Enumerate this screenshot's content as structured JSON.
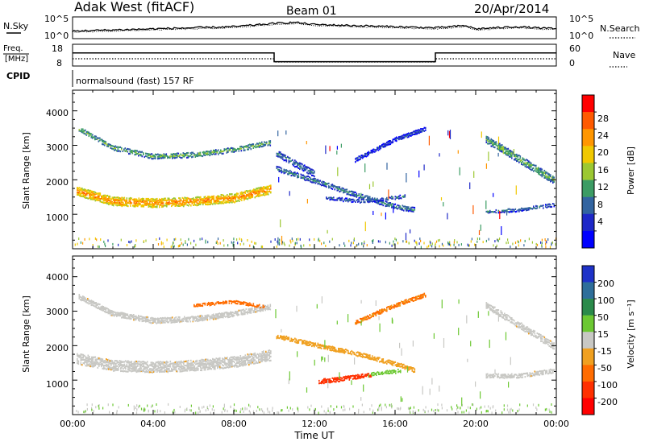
{
  "header": {
    "station": "Adak West (fitACF)",
    "beam": "Beam 01",
    "date": "20/Apr/2014"
  },
  "nsky_panel": {
    "left_label": "N.Sky",
    "left_ticks": [
      "10^5",
      "10^0"
    ],
    "right_ticks": [
      "10^5",
      "10^0"
    ],
    "right_label": "N.Search"
  },
  "freq_panel": {
    "left_label_1": "Freq.",
    "left_label_2": "[MHz]",
    "left_ticks": [
      "18",
      "8"
    ],
    "right_ticks": [
      "60",
      "0"
    ],
    "right_label": "Nave",
    "cpid_label": "CPID",
    "cpid_text": "normalsound (fast) 157 RF"
  },
  "range_panels": {
    "ylabel": "Slant Range [km]",
    "yticks": [
      "4000",
      "3000",
      "2000",
      "1000"
    ]
  },
  "colorbars": {
    "power": {
      "label": "Power [dB]",
      "ticks": [
        "28",
        "24",
        "20",
        "16",
        "12",
        "8",
        "4"
      ],
      "colors": [
        "#ff0000",
        "#ff5a00",
        "#ff9600",
        "#f0c800",
        "#9cc832",
        "#3c9c64",
        "#3264a0",
        "#1e28c8",
        "#0000ff"
      ]
    },
    "velocity": {
      "label": "Velocity [m s⁻¹]",
      "ticks": [
        "200",
        "100",
        "50",
        "15",
        "-15",
        "-50",
        "-100",
        "-200"
      ],
      "colors": [
        "#1e32c8",
        "#2e6e9a",
        "#2a8a4a",
        "#6cc832",
        "#c8c8c4",
        "#f0a020",
        "#ff6c00",
        "#ff3000",
        "#ff0000"
      ]
    }
  },
  "xaxis": {
    "ticks": [
      "00:00",
      "04:00",
      "08:00",
      "12:00",
      "16:00",
      "20:00",
      "00:00"
    ],
    "label": "Time UT"
  },
  "chart_data": [
    {
      "type": "line",
      "series": [
        {
          "x": [
            0,
            2,
            4,
            6,
            8,
            10,
            11,
            12,
            14,
            16,
            18,
            19.5,
            20,
            22,
            24
          ],
          "y": [
            0.35,
            0.4,
            0.45,
            0.5,
            0.55,
            0.7,
            0.75,
            0.65,
            0.6,
            0.55,
            0.5,
            0.6,
            0.45,
            0.55,
            0.45
          ]
        }
      ],
      "xlim": [
        0,
        24
      ],
      "xlabel": "",
      "ylabel": "N.Sky"
    },
    {
      "type": "line",
      "series": [
        {
          "x": [
            0,
            10,
            10,
            18,
            18,
            24
          ],
          "y": [
            14,
            14,
            10,
            10,
            14,
            14
          ]
        }
      ],
      "xlim": [
        0,
        24
      ],
      "ylim": [
        8,
        18
      ],
      "xlabel": "",
      "ylabel": "Freq. [MHz]"
    },
    {
      "type": "heatmap",
      "x_range": [
        0,
        24
      ],
      "y_range": [
        0,
        4600
      ],
      "ylabel": "Slant Range [km]",
      "colorbar": "Power [dB]",
      "clim": [
        0,
        30
      ],
      "bands": [
        {
          "t": [
            0.2,
            2,
            4,
            6,
            8,
            9.8
          ],
          "range": [
            1700,
            1400,
            1350,
            1400,
            1500,
            1750
          ],
          "width": 260,
          "value": 24
        },
        {
          "t": [
            0.3,
            2,
            4,
            6,
            8,
            9.8
          ],
          "range": [
            3500,
            2950,
            2700,
            2750,
            2900,
            3100
          ],
          "width": 150,
          "value": 14
        },
        {
          "t": [
            10.1,
            12,
            14,
            16,
            17
          ],
          "range": [
            2350,
            2000,
            1600,
            1250,
            1150
          ],
          "width": 150,
          "value": 11
        },
        {
          "t": [
            12.5,
            14.5,
            16.5
          ],
          "range": [
            1500,
            1400,
            1550
          ],
          "width": 110,
          "value": 9
        },
        {
          "t": [
            14,
            16,
            17.5
          ],
          "range": [
            2600,
            3200,
            3500
          ],
          "width": 120,
          "value": 7
        },
        {
          "t": [
            20.5,
            22,
            23.9
          ],
          "range": [
            1100,
            1150,
            1300
          ],
          "width": 100,
          "value": 10
        },
        {
          "t": [
            20.5,
            22.5,
            23.9
          ],
          "range": [
            3200,
            2500,
            2000
          ],
          "width": 230,
          "value": 14
        },
        {
          "t": [
            10.1,
            11,
            12
          ],
          "range": [
            2800,
            2500,
            2200
          ],
          "width": 200,
          "value": 10
        }
      ]
    },
    {
      "type": "heatmap",
      "x_range": [
        0,
        24
      ],
      "y_range": [
        0,
        4600
      ],
      "ylabel": "Slant Range [km]",
      "colorbar": "Velocity [m s⁻¹]",
      "clim": [
        -250,
        250
      ],
      "bands": [
        {
          "t": [
            0.2,
            2,
            4,
            6,
            8,
            9.8
          ],
          "range": [
            1650,
            1450,
            1400,
            1450,
            1550,
            1750
          ],
          "width": 320,
          "value": 0
        },
        {
          "t": [
            0.3,
            2,
            4,
            6,
            8,
            9.8
          ],
          "range": [
            3450,
            2950,
            2750,
            2800,
            2950,
            3150
          ],
          "width": 160,
          "value": 0
        },
        {
          "t": [
            10.1,
            12,
            14,
            16,
            17
          ],
          "range": [
            2300,
            2050,
            1800,
            1500,
            1300
          ],
          "width": 130,
          "value": -30
        },
        {
          "t": [
            12.2,
            13.5,
            14.8
          ],
          "range": [
            980,
            1080,
            1180
          ],
          "width": 140,
          "value": -170
        },
        {
          "t": [
            14.8,
            15.5,
            16.3
          ],
          "range": [
            1200,
            1250,
            1300
          ],
          "width": 110,
          "value": 30
        },
        {
          "t": [
            14,
            16,
            17.5
          ],
          "range": [
            2700,
            3200,
            3500
          ],
          "width": 120,
          "value": -50
        },
        {
          "t": [
            6,
            8,
            9.5
          ],
          "range": [
            3200,
            3300,
            3150
          ],
          "width": 90,
          "value": -60
        },
        {
          "t": [
            20.5,
            22,
            23.9
          ],
          "range": [
            1150,
            1150,
            1300
          ],
          "width": 130,
          "value": 0
        },
        {
          "t": [
            20.5,
            22.5,
            23.9
          ],
          "range": [
            3200,
            2500,
            2000
          ],
          "width": 190,
          "value": 0
        }
      ]
    }
  ]
}
